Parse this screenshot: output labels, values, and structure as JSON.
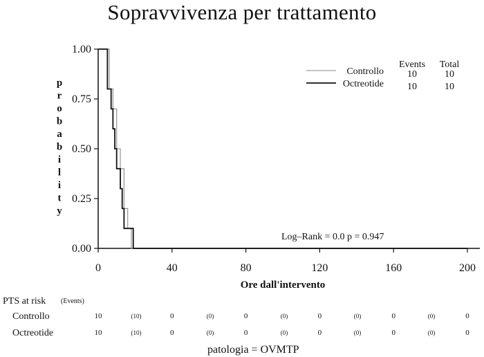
{
  "chart_data": {
    "type": "line",
    "title": "Sopravvivenza per trattamento",
    "xlabel": "Ore dall'intervento",
    "ylabel": "probability",
    "xlim": [
      0,
      200
    ],
    "ylim": [
      0,
      1
    ],
    "x_ticks": [
      "0",
      "40",
      "80",
      "120",
      "160",
      "200"
    ],
    "y_ticks": [
      "0.00",
      "0.25",
      "0.50",
      "0.75",
      "1.00"
    ],
    "grid": false,
    "legend_placement": "top-right",
    "legend_headers": [
      "Events",
      "Total"
    ],
    "series": [
      {
        "name": "Controllo",
        "color": "#8a8a8a",
        "events": "10",
        "total": "10",
        "x": [
          0,
          6,
          8,
          10,
          12,
          14,
          16,
          18
        ],
        "y": [
          1.0,
          0.8,
          0.7,
          0.5,
          0.4,
          0.2,
          0.1,
          0.0
        ]
      },
      {
        "name": "Octreotide",
        "color": "#111111",
        "events": "10",
        "total": "10",
        "x": [
          0,
          5,
          7,
          8,
          9,
          10,
          12,
          13,
          14,
          15,
          19
        ],
        "y": [
          1.0,
          0.8,
          0.7,
          0.6,
          0.5,
          0.4,
          0.3,
          0.2,
          0.1,
          0.1,
          0.0
        ]
      }
    ],
    "annotation": "Log–Rank = 0.0   p = 0.947"
  },
  "risk_table": {
    "title": "PTS at risk",
    "events_note": "(Events)",
    "rows": [
      {
        "label": "Controllo",
        "values": [
          "10",
          "0",
          "0",
          "0",
          "0",
          "0"
        ],
        "events": [
          "(10)",
          "(0)",
          "(0)",
          "(0)",
          "(0)"
        ]
      },
      {
        "label": "Octreotide",
        "values": [
          "10",
          "0",
          "0",
          "0",
          "0",
          "0"
        ],
        "events": [
          "(10)",
          "(0)",
          "(0)",
          "(0)",
          "(0)"
        ]
      }
    ]
  },
  "footer": "patologia = OVMTP"
}
